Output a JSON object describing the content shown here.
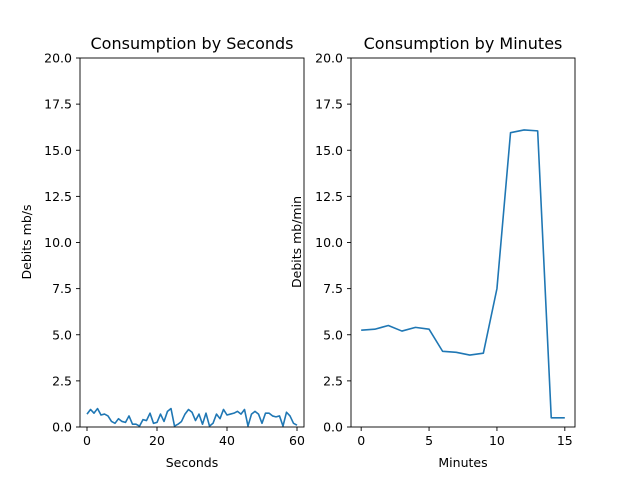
{
  "chart_data": [
    {
      "type": "line",
      "title": "Consumption by Seconds",
      "xlabel": "Seconds",
      "ylabel": "Debits mb/s",
      "xlim": [
        -2,
        62
      ],
      "ylim": [
        0,
        20
      ],
      "xticks": [
        0,
        20,
        40,
        60
      ],
      "yticks": [
        0.0,
        2.5,
        5.0,
        7.5,
        10.0,
        12.5,
        15.0,
        17.5,
        20.0
      ],
      "grid": false,
      "line_color": "#1f77b4",
      "x": [
        0,
        1,
        2,
        3,
        4,
        5,
        6,
        7,
        8,
        9,
        10,
        11,
        12,
        13,
        14,
        15,
        16,
        17,
        18,
        19,
        20,
        21,
        22,
        23,
        24,
        25,
        26,
        27,
        28,
        29,
        30,
        31,
        32,
        33,
        34,
        35,
        36,
        37,
        38,
        39,
        40,
        41,
        42,
        43,
        44,
        45,
        46,
        47,
        48,
        49,
        50,
        51,
        52,
        53,
        54,
        55,
        56,
        57,
        58,
        59,
        60
      ],
      "y": [
        0.7,
        0.95,
        0.75,
        1.0,
        0.65,
        0.7,
        0.6,
        0.3,
        0.2,
        0.45,
        0.3,
        0.25,
        0.6,
        0.15,
        0.15,
        0.05,
        0.4,
        0.35,
        0.75,
        0.2,
        0.25,
        0.7,
        0.3,
        0.85,
        1.0,
        0.05,
        0.15,
        0.3,
        0.7,
        0.95,
        0.8,
        0.35,
        0.7,
        0.15,
        0.75,
        0.05,
        0.2,
        0.7,
        0.45,
        0.95,
        0.65,
        0.7,
        0.75,
        0.85,
        0.7,
        0.95,
        0.05,
        0.7,
        0.85,
        0.7,
        0.2,
        0.75,
        0.75,
        0.6,
        0.55,
        0.6,
        0.05,
        0.8,
        0.6,
        0.2,
        0.1
      ]
    },
    {
      "type": "line",
      "title": "Consumption by Minutes",
      "xlabel": "Minutes",
      "ylabel": "Debits mb/min",
      "xlim": [
        -0.75,
        15.75
      ],
      "ylim": [
        0,
        20
      ],
      "xticks": [
        0,
        5,
        10,
        15
      ],
      "yticks": [
        0.0,
        2.5,
        5.0,
        7.5,
        10.0,
        12.5,
        15.0,
        17.5,
        20.0
      ],
      "grid": false,
      "line_color": "#1f77b4",
      "x": [
        0,
        1,
        2,
        3,
        4,
        5,
        6,
        7,
        8,
        9,
        10,
        11,
        12,
        13,
        14,
        15
      ],
      "y": [
        5.25,
        5.3,
        5.5,
        5.2,
        5.4,
        5.3,
        4.1,
        4.05,
        3.9,
        4.0,
        7.5,
        15.95,
        16.1,
        16.05,
        0.5,
        0.5
      ]
    }
  ]
}
